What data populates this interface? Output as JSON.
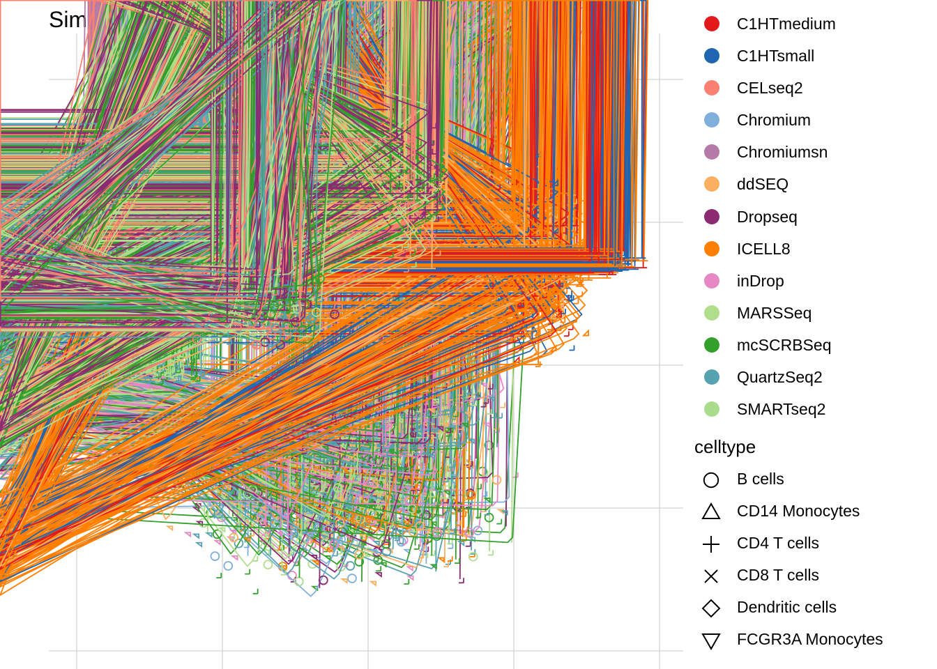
{
  "chart_data": {
    "type": "scatter",
    "title": "Simulate: hca - 0.7__2_1",
    "xlabel": "",
    "ylabel": "",
    "grid": true,
    "legend_position": "right",
    "series": [
      {
        "name": "C1HTmedium",
        "color": "#E31A1C",
        "region": "right lobe (upper)"
      },
      {
        "name": "C1HTsmall",
        "color": "#1F65B0",
        "region": "right lobe"
      },
      {
        "name": "CELseq2",
        "color": "#FA8072",
        "region": "upper left"
      },
      {
        "name": "Chromium",
        "color": "#7FB0DC",
        "region": "mixed"
      },
      {
        "name": "Chromiumsn",
        "color": "#B47AA8",
        "region": "far left"
      },
      {
        "name": "ddSEQ",
        "color": "#FBB061",
        "region": "mixed"
      },
      {
        "name": "Dropseq",
        "color": "#8C2A72",
        "region": "mixed"
      },
      {
        "name": "ICELL8",
        "color": "#FF7F00",
        "region": "right lobe"
      },
      {
        "name": "inDrop",
        "color": "#E787C4",
        "region": "mixed"
      },
      {
        "name": "MARSSeq",
        "color": "#B1DE8C",
        "region": "left and upper"
      },
      {
        "name": "mcSCRBSeq",
        "color": "#33A02C",
        "region": "bottom"
      },
      {
        "name": "QuartzSeq2",
        "color": "#56A2B0",
        "region": "center"
      },
      {
        "name": "SMARTseq2",
        "color": "#A9DD8B",
        "region": "left"
      }
    ],
    "shape_legend": {
      "title": "celltype",
      "items": [
        {
          "name": "B cells",
          "shape": "circle"
        },
        {
          "name": "CD14 Monocytes",
          "shape": "triangle-up"
        },
        {
          "name": "CD4 T cells",
          "shape": "plus"
        },
        {
          "name": "CD8 T cells",
          "shape": "cross"
        },
        {
          "name": "Dendritic cells",
          "shape": "diamond"
        },
        {
          "name": "FCGR3A Monocytes",
          "shape": "triangle-down"
        }
      ]
    }
  }
}
